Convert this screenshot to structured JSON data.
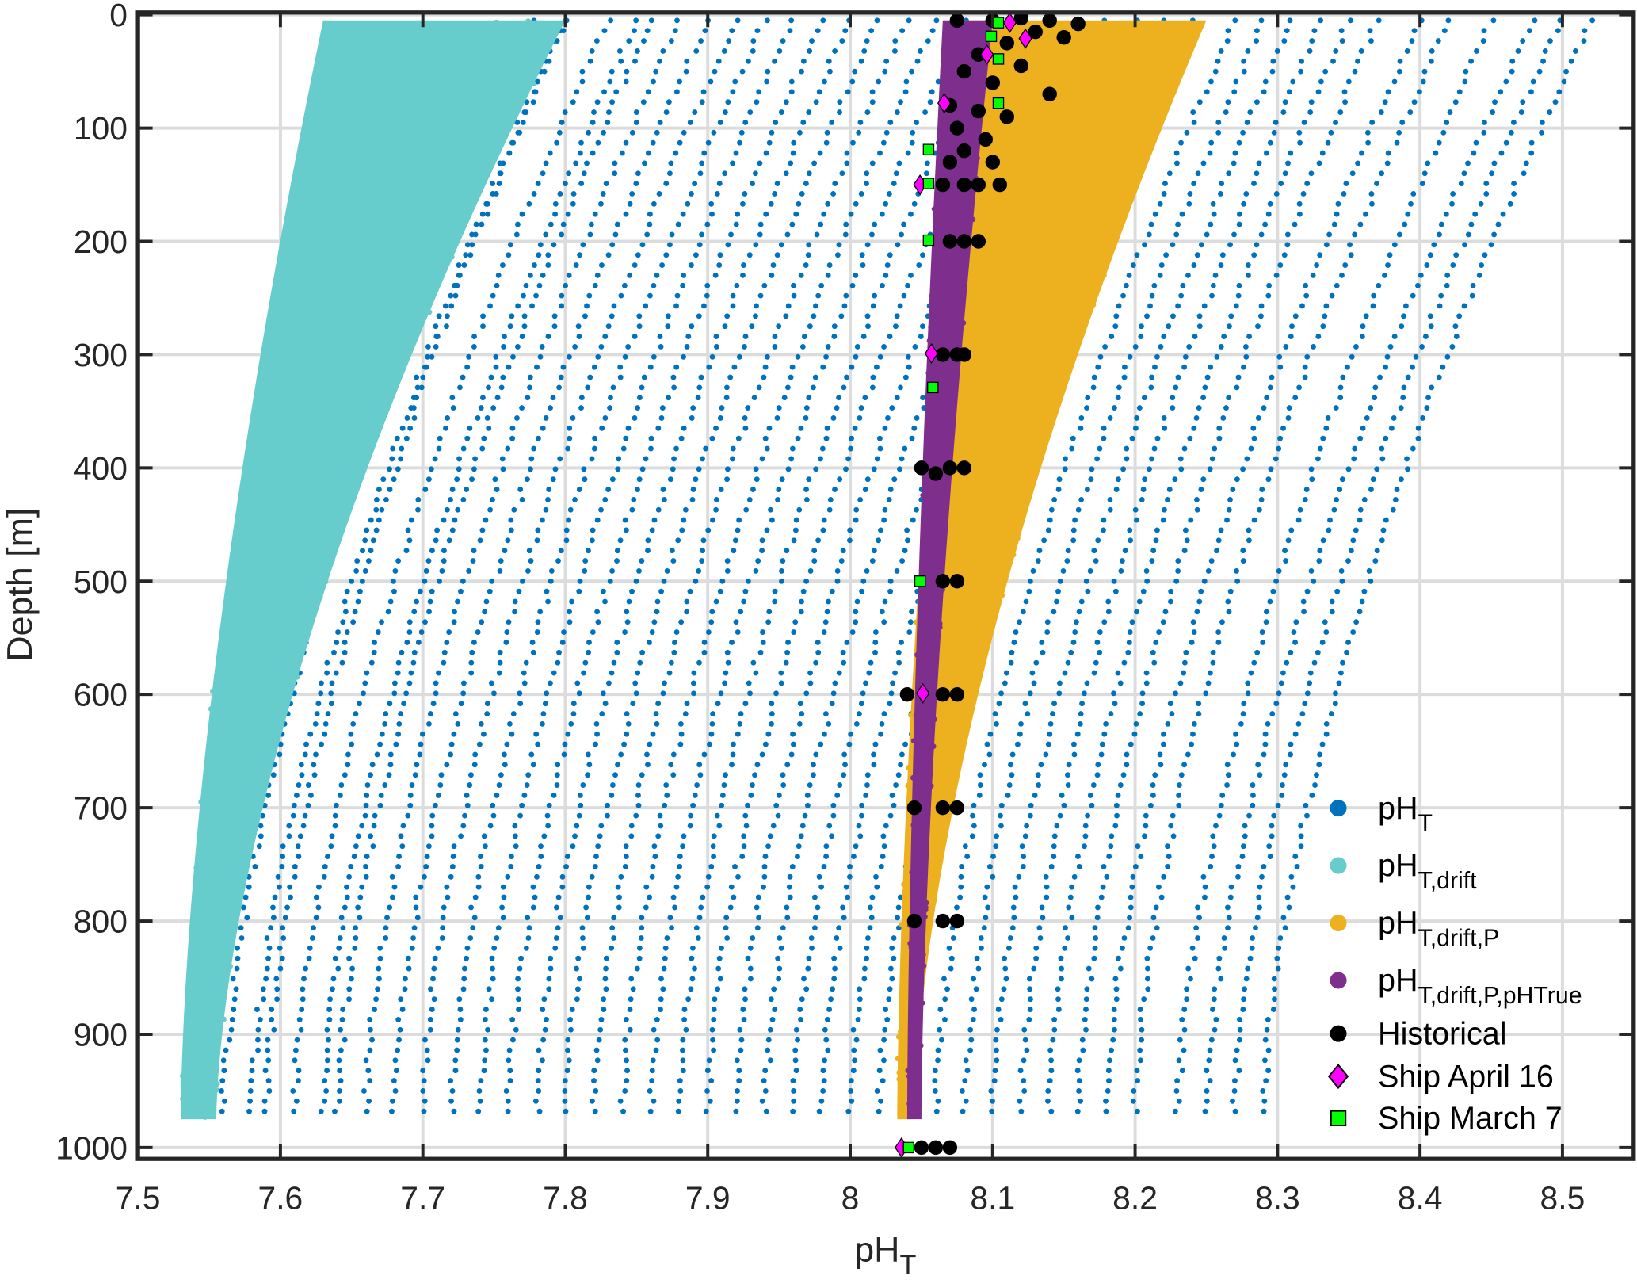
{
  "chart_data": {
    "type": "scatter",
    "title": "",
    "xlabel": {
      "main": "pH",
      "sub": "T"
    },
    "ylabel": "Depth [m]",
    "xlim": [
      7.5,
      8.55
    ],
    "ylim": [
      1010,
      -2
    ],
    "y_reversed": true,
    "grid": true,
    "xticks": [
      "7.5",
      "7.6",
      "7.7",
      "7.8",
      "7.9",
      "8",
      "8.1",
      "8.2",
      "8.3",
      "8.4",
      "8.5"
    ],
    "yticks": [
      "0",
      "100",
      "200",
      "300",
      "400",
      "500",
      "600",
      "700",
      "800",
      "900",
      "1000"
    ],
    "legend_position": "bottom-right",
    "colors": {
      "pHT": "#0072BD",
      "drift": "#66CCCC",
      "driftP": "#EDB120",
      "driftPTrue": "#7E2F8E",
      "historical": "#000000",
      "april": "#FF00FF",
      "march": "#00FF00"
    },
    "profile_depths_m": [
      5,
      975
    ],
    "series": [
      {
        "name": "pHT",
        "legend": {
          "main": "pH",
          "sub": "T"
        },
        "marker": "dot",
        "profiles_surface_bottom": [
          [
            7.78,
            7.56
          ],
          [
            7.8,
            7.58
          ],
          [
            7.8,
            7.59
          ],
          [
            7.83,
            7.61
          ],
          [
            7.85,
            7.63
          ],
          [
            7.86,
            7.64
          ],
          [
            7.88,
            7.66
          ],
          [
            7.9,
            7.68
          ],
          [
            7.92,
            7.7
          ],
          [
            7.94,
            7.72
          ],
          [
            7.96,
            7.74
          ],
          [
            7.98,
            7.76
          ],
          [
            8.0,
            7.78
          ],
          [
            8.02,
            7.8
          ],
          [
            8.04,
            7.82
          ],
          [
            8.06,
            7.84
          ],
          [
            8.08,
            7.86
          ],
          [
            8.1,
            7.88
          ],
          [
            8.12,
            7.9
          ],
          [
            8.14,
            7.92
          ],
          [
            8.16,
            7.94
          ],
          [
            8.18,
            7.96
          ],
          [
            8.2,
            7.98
          ],
          [
            8.22,
            8.0
          ],
          [
            8.24,
            8.02
          ],
          [
            8.27,
            8.06
          ],
          [
            8.29,
            8.08
          ],
          [
            8.31,
            8.1
          ],
          [
            8.33,
            8.12
          ],
          [
            8.35,
            8.14
          ],
          [
            8.37,
            8.16
          ],
          [
            8.4,
            8.18
          ],
          [
            8.42,
            8.2
          ],
          [
            8.45,
            8.23
          ],
          [
            8.48,
            8.25
          ],
          [
            8.5,
            8.27
          ],
          [
            8.52,
            8.29
          ]
        ]
      },
      {
        "name": "pHT,drift",
        "legend": {
          "main": "pH",
          "sub": "T,drift"
        },
        "marker": "band",
        "band_surface": [
          7.63,
          7.8
        ],
        "band_bottom": [
          7.53,
          7.555
        ]
      },
      {
        "name": "pHT,drift,P",
        "legend": {
          "main": "pH",
          "sub": "T,drift,P"
        },
        "marker": "band",
        "band_surface": [
          8.08,
          8.25
        ],
        "band_bottom": [
          8.033,
          8.045
        ]
      },
      {
        "name": "pHT,drift,P,pHTrue",
        "legend": {
          "main": "pH",
          "sub": "T,drift,P,pHTrue"
        },
        "marker": "band",
        "band_surface": [
          8.065,
          8.1
        ],
        "band_bottom": [
          8.04,
          8.05
        ]
      },
      {
        "name": "Historical",
        "legend": {
          "main": "Historical",
          "sub": ""
        },
        "marker": "circle",
        "points": [
          [
            8.075,
            5
          ],
          [
            8.1,
            5
          ],
          [
            8.12,
            3
          ],
          [
            8.14,
            5
          ],
          [
            8.16,
            8
          ],
          [
            8.13,
            15
          ],
          [
            8.11,
            25
          ],
          [
            8.09,
            35
          ],
          [
            8.15,
            20
          ],
          [
            8.08,
            50
          ],
          [
            8.12,
            45
          ],
          [
            8.1,
            60
          ],
          [
            8.14,
            70
          ],
          [
            8.07,
            80
          ],
          [
            8.09,
            85
          ],
          [
            8.11,
            90
          ],
          [
            8.075,
            100
          ],
          [
            8.095,
            110
          ],
          [
            8.08,
            120
          ],
          [
            8.07,
            130
          ],
          [
            8.1,
            130
          ],
          [
            8.065,
            150
          ],
          [
            8.08,
            150
          ],
          [
            8.09,
            150
          ],
          [
            8.105,
            150
          ],
          [
            8.07,
            200
          ],
          [
            8.08,
            200
          ],
          [
            8.09,
            200
          ],
          [
            8.065,
            300
          ],
          [
            8.075,
            300
          ],
          [
            8.08,
            300
          ],
          [
            8.05,
            400
          ],
          [
            8.06,
            405
          ],
          [
            8.07,
            400
          ],
          [
            8.08,
            400
          ],
          [
            8.065,
            500
          ],
          [
            8.075,
            500
          ],
          [
            8.04,
            600
          ],
          [
            8.065,
            600
          ],
          [
            8.075,
            600
          ],
          [
            8.045,
            700
          ],
          [
            8.065,
            700
          ],
          [
            8.075,
            700
          ],
          [
            8.045,
            800
          ],
          [
            8.065,
            800
          ],
          [
            8.075,
            800
          ],
          [
            8.05,
            1000
          ],
          [
            8.06,
            1000
          ],
          [
            8.07,
            1000
          ]
        ]
      },
      {
        "name": "Ship April 16",
        "legend": {
          "main": "Ship April 16",
          "sub": ""
        },
        "marker": "diamond",
        "points": [
          [
            8.112,
            7
          ],
          [
            8.123,
            21
          ],
          [
            8.096,
            35
          ],
          [
            8.066,
            78
          ],
          [
            8.049,
            150
          ],
          [
            8.057,
            299
          ],
          [
            8.051,
            599
          ],
          [
            8.036,
            1000
          ]
        ]
      },
      {
        "name": "Ship March 7",
        "legend": {
          "main": "Ship March 7",
          "sub": ""
        },
        "marker": "square",
        "points": [
          [
            8.104,
            7
          ],
          [
            8.099,
            19
          ],
          [
            8.104,
            39
          ],
          [
            8.104,
            78
          ],
          [
            8.055,
            119
          ],
          [
            8.055,
            149
          ],
          [
            8.055,
            199
          ],
          [
            8.058,
            329
          ],
          [
            8.049,
            500
          ],
          [
            8.041,
            1000
          ]
        ]
      }
    ]
  }
}
